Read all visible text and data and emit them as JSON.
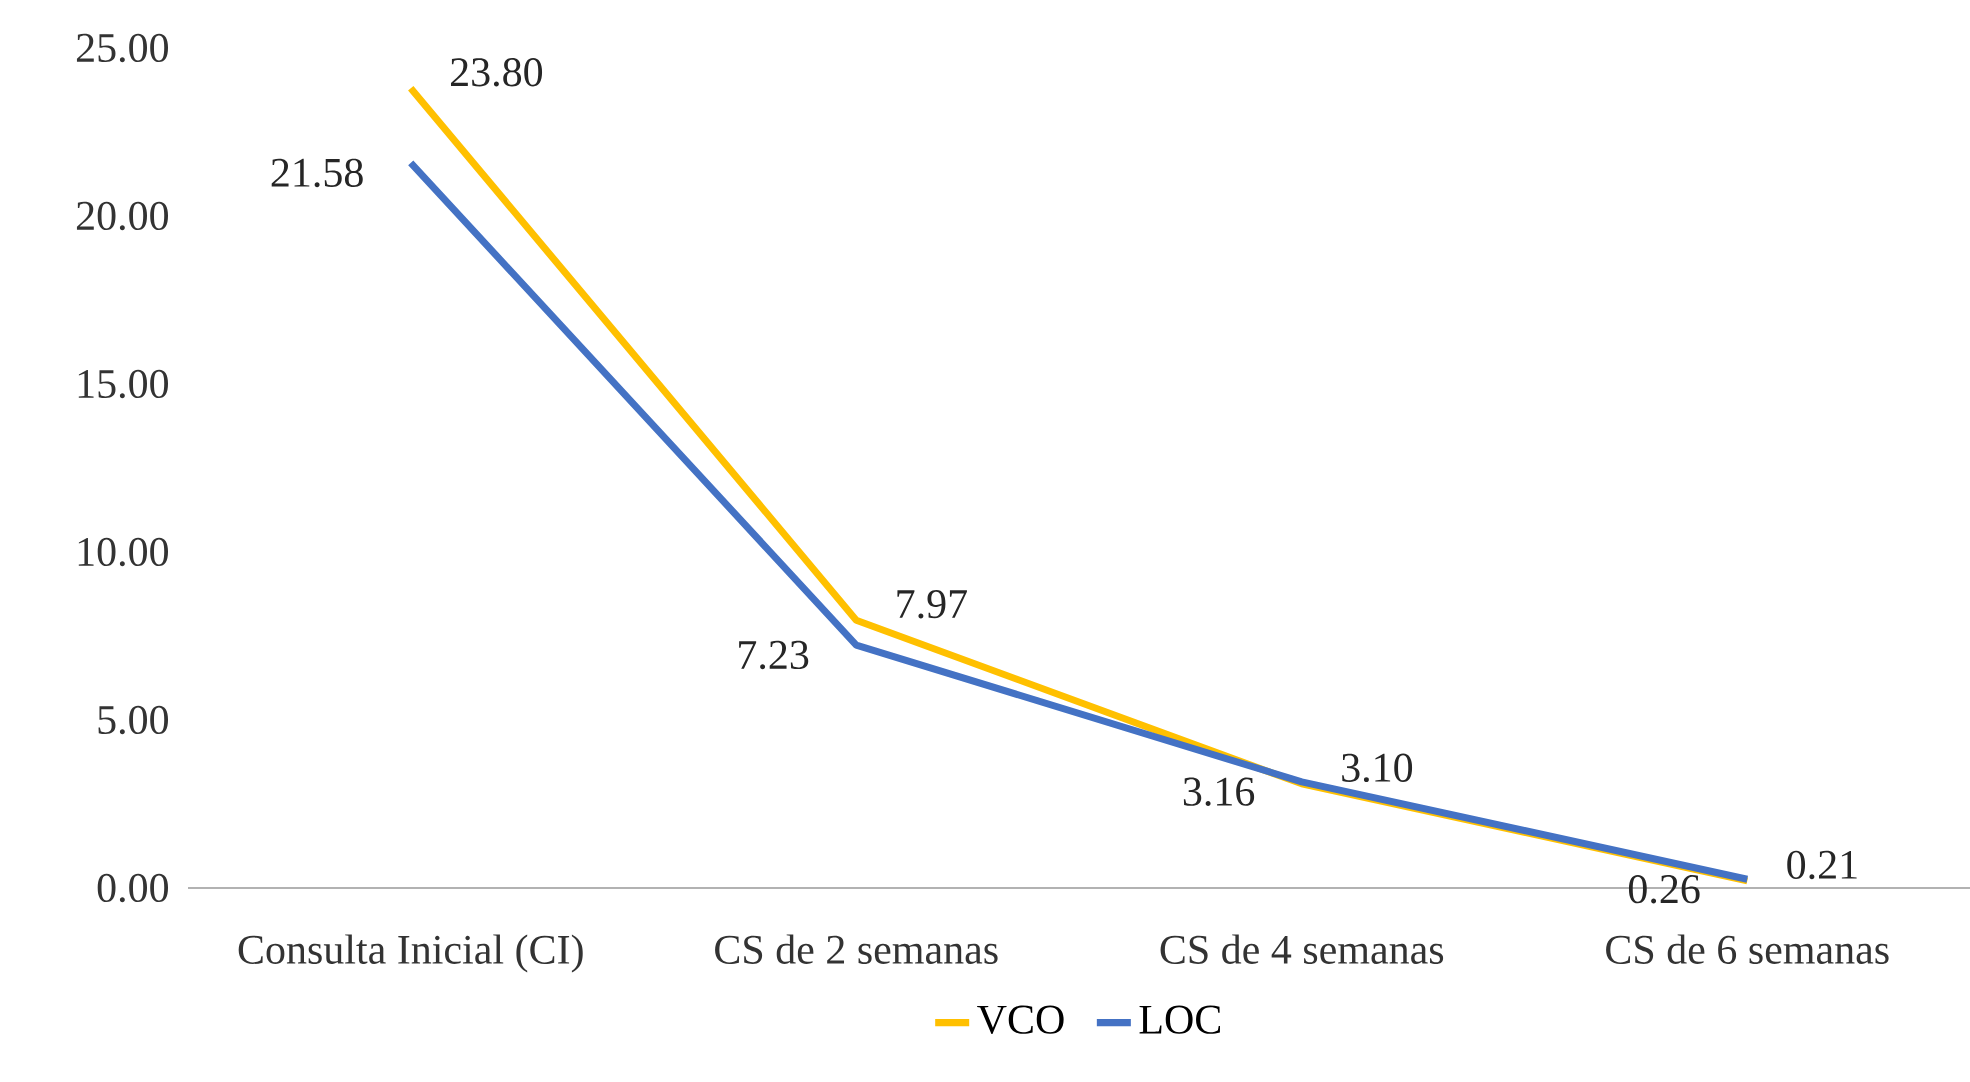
{
  "chart_data": {
    "type": "line",
    "categories": [
      "Consulta Inicial (CI)",
      "CS de 2 semanas",
      "CS de 4 semanas",
      "CS de 6 semanas"
    ],
    "series": [
      {
        "name": "VCO",
        "color": "#ffc000",
        "values": [
          23.8,
          7.97,
          3.1,
          0.21
        ],
        "value_labels": [
          "23.80",
          "7.97",
          "3.10",
          "0.21"
        ]
      },
      {
        "name": "LOC",
        "color": "#4472c4",
        "values": [
          21.58,
          7.23,
          3.16,
          0.26
        ],
        "value_labels": [
          "21.58",
          "7.23",
          "3.16",
          "0.26"
        ]
      }
    ],
    "ylim": [
      0,
      25
    ],
    "yticks": [
      {
        "value": 0,
        "label": "0.00"
      },
      {
        "value": 5,
        "label": "5.00"
      },
      {
        "value": 10,
        "label": "10.00"
      },
      {
        "value": 15,
        "label": "15.00"
      },
      {
        "value": 20,
        "label": "20.00"
      },
      {
        "value": 25,
        "label": "25.00"
      }
    ],
    "grid": false,
    "legend": "bottom",
    "marker": "none",
    "line_style": "solid"
  }
}
